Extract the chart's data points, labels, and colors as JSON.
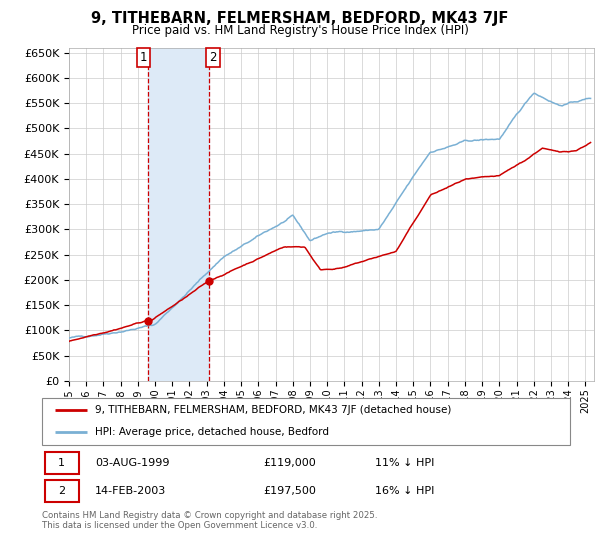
{
  "title": "9, TITHEBARN, FELMERSHAM, BEDFORD, MK43 7JF",
  "subtitle": "Price paid vs. HM Land Registry's House Price Index (HPI)",
  "background_color": "#ffffff",
  "plot_bg_color": "#ffffff",
  "grid_color": "#cccccc",
  "sale1_date_x": 1999.583,
  "sale1_price": 119000,
  "sale1_label": "1",
  "sale2_date_x": 2003.12,
  "sale2_price": 197500,
  "sale2_label": "2",
  "shade_color": "#ddeaf7",
  "sale_line_color": "#cc0000",
  "hpi_line_color": "#7ab0d4",
  "marker_color": "#cc0000",
  "legend_sale_label": "9, TITHEBARN, FELMERSHAM, BEDFORD, MK43 7JF (detached house)",
  "legend_hpi_label": "HPI: Average price, detached house, Bedford",
  "annotation1_date": "03-AUG-1999",
  "annotation1_price": "£119,000",
  "annotation1_hpi": "11% ↓ HPI",
  "annotation2_date": "14-FEB-2003",
  "annotation2_price": "£197,500",
  "annotation2_hpi": "16% ↓ HPI",
  "footer": "Contains HM Land Registry data © Crown copyright and database right 2025.\nThis data is licensed under the Open Government Licence v3.0.",
  "ylim_min": 0,
  "ylim_max": 660000,
  "xlim_min": 1995.0,
  "xlim_max": 2025.5
}
